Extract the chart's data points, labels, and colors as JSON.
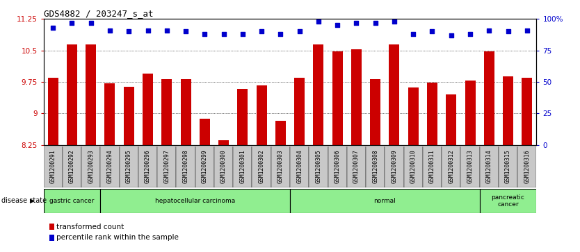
{
  "title": "GDS4882 / 203247_s_at",
  "samples": [
    "GSM1200291",
    "GSM1200292",
    "GSM1200293",
    "GSM1200294",
    "GSM1200295",
    "GSM1200296",
    "GSM1200297",
    "GSM1200298",
    "GSM1200299",
    "GSM1200300",
    "GSM1200301",
    "GSM1200302",
    "GSM1200303",
    "GSM1200304",
    "GSM1200305",
    "GSM1200306",
    "GSM1200307",
    "GSM1200308",
    "GSM1200309",
    "GSM1200310",
    "GSM1200311",
    "GSM1200312",
    "GSM1200313",
    "GSM1200314",
    "GSM1200315",
    "GSM1200316"
  ],
  "bar_values": [
    9.85,
    10.65,
    10.65,
    9.72,
    9.63,
    9.95,
    9.82,
    9.82,
    8.88,
    8.36,
    9.58,
    9.67,
    8.82,
    9.85,
    10.65,
    10.48,
    10.52,
    9.82,
    10.65,
    9.62,
    9.73,
    9.45,
    9.78,
    10.48,
    9.88,
    9.85
  ],
  "percentile_values": [
    93,
    97,
    97,
    91,
    90,
    91,
    91,
    90,
    88,
    88,
    88,
    90,
    88,
    90,
    98,
    95,
    97,
    97,
    98,
    88,
    90,
    87,
    88,
    91,
    90,
    91
  ],
  "ylim_left": [
    8.25,
    11.25
  ],
  "ylim_right": [
    0,
    100
  ],
  "yticks_left": [
    8.25,
    9.0,
    9.75,
    10.5,
    11.25
  ],
  "yticks_right": [
    0,
    25,
    50,
    75,
    100
  ],
  "ytick_labels_left": [
    "8.25",
    "9",
    "9.75",
    "10.5",
    "11.25"
  ],
  "ytick_labels_right": [
    "0",
    "25",
    "50",
    "75",
    "100%"
  ],
  "bar_color": "#cc0000",
  "dot_color": "#0000cc",
  "bg_color": "#ffffff",
  "disease_groups": [
    {
      "label": "gastric cancer",
      "start": 0,
      "end": 3
    },
    {
      "label": "hepatocellular carcinoma",
      "start": 3,
      "end": 13
    },
    {
      "label": "normal",
      "start": 13,
      "end": 23
    },
    {
      "label": "pancreatic\ncancer",
      "start": 23,
      "end": 26
    }
  ],
  "disease_label": "disease state",
  "legend_bar_label": "transformed count",
  "legend_dot_label": "percentile rank within the sample",
  "bottom_band_color": "#90ee90",
  "xtick_bg_color": "#c8c8c8"
}
